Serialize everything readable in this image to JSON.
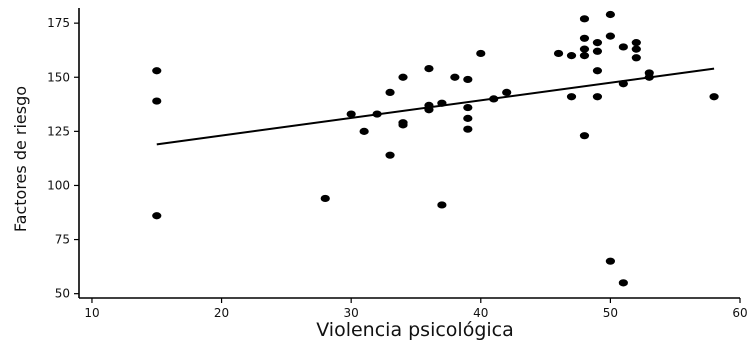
{
  "chart_data": {
    "type": "scatter",
    "title": "",
    "xlabel": "Violencia psicológica",
    "ylabel": "Factores de riesgo",
    "xlim": [
      9,
      60
    ],
    "ylim": [
      48,
      182
    ],
    "xticks": [
      10,
      20,
      30,
      40,
      50,
      60
    ],
    "yticks": [
      50,
      75,
      100,
      125,
      150,
      175
    ],
    "grid": false,
    "legend": "none",
    "points": [
      {
        "x": 15,
        "y": 153
      },
      {
        "x": 15,
        "y": 139
      },
      {
        "x": 15,
        "y": 86
      },
      {
        "x": 28,
        "y": 94
      },
      {
        "x": 30,
        "y": 133
      },
      {
        "x": 31,
        "y": 125
      },
      {
        "x": 32,
        "y": 133
      },
      {
        "x": 33,
        "y": 143
      },
      {
        "x": 33,
        "y": 114
      },
      {
        "x": 34,
        "y": 150
      },
      {
        "x": 34,
        "y": 129
      },
      {
        "x": 34,
        "y": 128
      },
      {
        "x": 36,
        "y": 154
      },
      {
        "x": 36,
        "y": 137
      },
      {
        "x": 36,
        "y": 135
      },
      {
        "x": 37,
        "y": 138
      },
      {
        "x": 37,
        "y": 91
      },
      {
        "x": 38,
        "y": 150
      },
      {
        "x": 39,
        "y": 149
      },
      {
        "x": 39,
        "y": 136
      },
      {
        "x": 39,
        "y": 131
      },
      {
        "x": 39,
        "y": 126
      },
      {
        "x": 40,
        "y": 161
      },
      {
        "x": 41,
        "y": 140
      },
      {
        "x": 42,
        "y": 143
      },
      {
        "x": 46,
        "y": 161
      },
      {
        "x": 47,
        "y": 160
      },
      {
        "x": 47,
        "y": 141
      },
      {
        "x": 48,
        "y": 177
      },
      {
        "x": 48,
        "y": 168
      },
      {
        "x": 48,
        "y": 163
      },
      {
        "x": 48,
        "y": 160
      },
      {
        "x": 48,
        "y": 123
      },
      {
        "x": 49,
        "y": 166
      },
      {
        "x": 49,
        "y": 162
      },
      {
        "x": 49,
        "y": 153
      },
      {
        "x": 49,
        "y": 141
      },
      {
        "x": 50,
        "y": 179
      },
      {
        "x": 50,
        "y": 169
      },
      {
        "x": 50,
        "y": 65
      },
      {
        "x": 51,
        "y": 164
      },
      {
        "x": 51,
        "y": 147
      },
      {
        "x": 51,
        "y": 55
      },
      {
        "x": 52,
        "y": 166
      },
      {
        "x": 52,
        "y": 163
      },
      {
        "x": 52,
        "y": 159
      },
      {
        "x": 53,
        "y": 152
      },
      {
        "x": 53,
        "y": 150
      },
      {
        "x": 58,
        "y": 141
      }
    ],
    "trendline": {
      "x": [
        15,
        58
      ],
      "y": [
        119,
        154
      ]
    }
  },
  "colors": {
    "points": "#000000",
    "line": "#000000",
    "axes": "#000000"
  }
}
